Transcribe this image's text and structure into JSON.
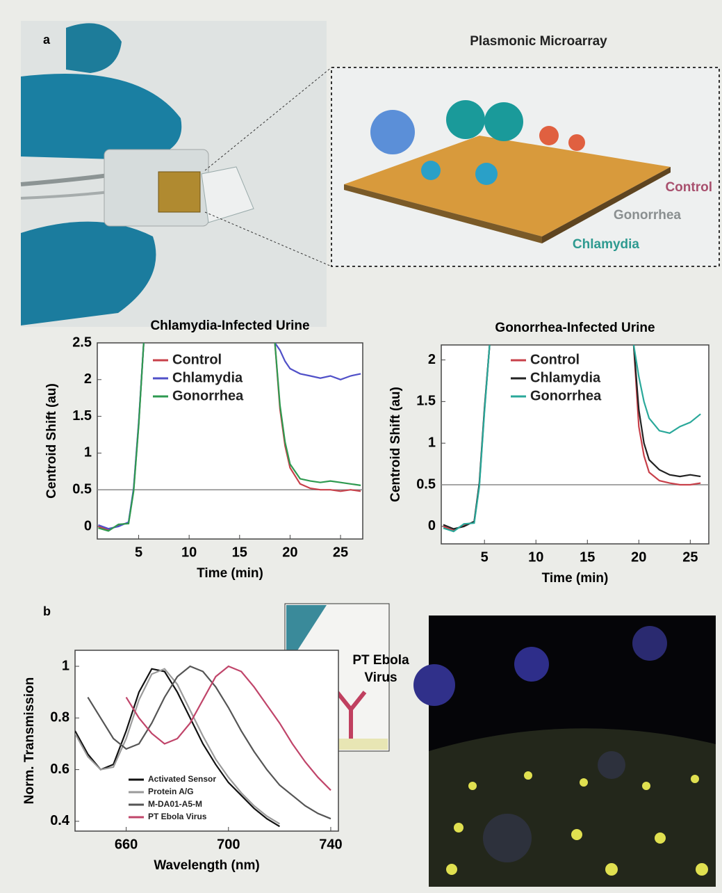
{
  "figure": {
    "panel_a": "a",
    "panel_b": "b",
    "microarray_title": "Plasmonic Microarray",
    "array_labels": [
      "Control",
      "Gonorrhea",
      "Chlamydia"
    ],
    "inset_label": [
      "PT Ebola",
      "Virus"
    ]
  },
  "chart_data": [
    {
      "type": "line",
      "title": "Chlamydia-Infected Urine",
      "xlabel": "Time (min)",
      "ylabel": "Centroid Shift (au)",
      "x": [
        1,
        2,
        3,
        4,
        4.5,
        5,
        5.5,
        12,
        18.5,
        19,
        19.5,
        20,
        21,
        22,
        23,
        24,
        25,
        26,
        27
      ],
      "series": [
        {
          "name": "Control",
          "color": "#c8404a",
          "values": [
            0,
            -0.05,
            0.02,
            0.05,
            0.5,
            1.4,
            2.5,
            null,
            2.5,
            1.6,
            1.1,
            0.8,
            0.58,
            0.52,
            0.5,
            0.5,
            0.48,
            0.5,
            0.48
          ]
        },
        {
          "name": "Chlamydia",
          "color": "#5050c8",
          "values": [
            0.02,
            -0.03,
            0,
            0.06,
            0.52,
            1.42,
            2.5,
            null,
            2.5,
            2.4,
            2.25,
            2.15,
            2.08,
            2.05,
            2.02,
            2.05,
            2,
            2.05,
            2.08
          ]
        },
        {
          "name": "Gonorrhea",
          "color": "#2e9a50",
          "values": [
            -0.02,
            -0.06,
            0.03,
            0.04,
            0.48,
            1.38,
            2.5,
            null,
            2.5,
            1.65,
            1.15,
            0.85,
            0.65,
            0.62,
            0.6,
            0.62,
            0.6,
            0.58,
            0.56
          ]
        }
      ],
      "reference_line": 0.5,
      "xlim": [
        0.9,
        27.2
      ],
      "ylim": [
        -0.17,
        2.5
      ],
      "xticks": [
        5,
        10,
        15,
        20,
        25
      ],
      "yticks": [
        0,
        0.5,
        1,
        1.5,
        2,
        2.5
      ],
      "legend": "upper left"
    },
    {
      "type": "line",
      "title": "Gonorrhea-Infected Urine",
      "xlabel": "Time (min)",
      "ylabel": "Centroid Shift (au)",
      "x": [
        1,
        2,
        3,
        4,
        4.5,
        5,
        5.5,
        12,
        19.5,
        20,
        20.5,
        21,
        22,
        23,
        24,
        25,
        26
      ],
      "series": [
        {
          "name": "Control",
          "color": "#c8404a",
          "values": [
            0,
            -0.05,
            0.02,
            0.05,
            0.5,
            1.4,
            2.18,
            null,
            2.18,
            1.2,
            0.85,
            0.65,
            0.55,
            0.52,
            0.5,
            0.5,
            0.52
          ]
        },
        {
          "name": "Chlamydia",
          "color": "#222222",
          "values": [
            0.02,
            -0.03,
            0,
            0.06,
            0.52,
            1.42,
            2.18,
            null,
            2.18,
            1.4,
            1,
            0.8,
            0.68,
            0.62,
            0.6,
            0.62,
            0.6
          ]
        },
        {
          "name": "Gonorrhea",
          "color": "#2aa89a",
          "values": [
            -0.02,
            -0.06,
            0.03,
            0.04,
            0.48,
            1.38,
            2.18,
            null,
            2.18,
            1.8,
            1.5,
            1.3,
            1.15,
            1.12,
            1.2,
            1.25,
            1.35
          ]
        }
      ],
      "reference_line": 0.5,
      "xlim": [
        0.8,
        26.8
      ],
      "ylim": [
        -0.21,
        2.18
      ],
      "xticks": [
        5,
        10,
        15,
        20,
        25
      ],
      "yticks": [
        0,
        0.5,
        1,
        1.5,
        2
      ],
      "legend": "upper left"
    },
    {
      "type": "line",
      "xlabel": "Wavelength (nm)",
      "ylabel": "Norm. Transmission",
      "x": [
        640,
        645,
        650,
        655,
        660,
        665,
        670,
        675,
        680,
        685,
        690,
        695,
        700,
        705,
        710,
        715,
        720,
        725,
        730,
        735,
        740
      ],
      "series": [
        {
          "name": "Activated Sensor",
          "color": "#111111",
          "values": [
            0.75,
            0.66,
            0.6,
            0.62,
            0.75,
            0.9,
            0.99,
            0.98,
            0.9,
            0.8,
            0.7,
            0.62,
            0.55,
            0.5,
            0.45,
            0.41,
            0.38,
            null,
            null,
            null,
            null
          ]
        },
        {
          "name": "Protein A/G",
          "color": "#9a9a9a",
          "values": [
            0.74,
            0.65,
            0.6,
            0.61,
            0.72,
            0.87,
            0.97,
            0.99,
            0.93,
            0.83,
            0.73,
            0.64,
            0.57,
            0.51,
            0.46,
            0.42,
            0.39,
            null,
            null,
            null,
            null
          ]
        },
        {
          "name": "M-DA01-A5-M",
          "color": "#555555",
          "values": [
            null,
            0.88,
            0.8,
            0.72,
            0.68,
            0.7,
            0.78,
            0.88,
            0.96,
            1,
            0.98,
            0.92,
            0.84,
            0.75,
            0.67,
            0.6,
            0.54,
            0.5,
            0.46,
            0.43,
            0.41
          ]
        },
        {
          "name": "PT Ebola Virus",
          "color": "#c0456a",
          "values": [
            null,
            null,
            null,
            null,
            0.88,
            0.8,
            0.74,
            0.7,
            0.72,
            0.78,
            0.87,
            0.96,
            1,
            0.98,
            0.92,
            0.85,
            0.78,
            0.7,
            0.63,
            0.57,
            0.52
          ]
        }
      ],
      "xlim": [
        640,
        743
      ],
      "ylim": [
        0.362,
        1.062
      ],
      "xticks": [
        660,
        700,
        740
      ],
      "yticks": [
        0.4,
        0.6,
        0.8,
        1
      ],
      "legend": "lower left"
    }
  ]
}
